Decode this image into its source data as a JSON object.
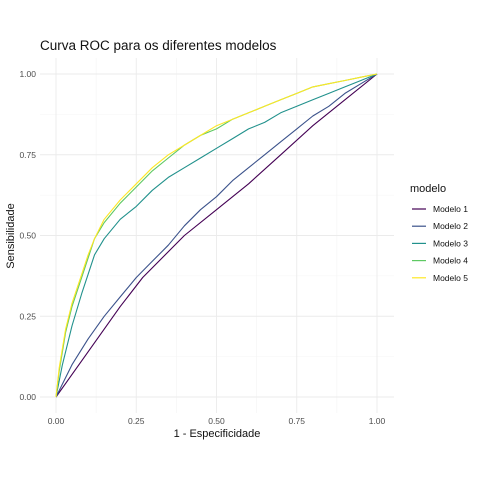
{
  "chart_data": {
    "type": "line",
    "title": "Curva ROC para os diferentes modelos",
    "xlabel": "1 - Especificidade",
    "ylabel": "Sensibilidade",
    "xlim": [
      0,
      1
    ],
    "ylim": [
      0,
      1
    ],
    "x_ticks": [
      "0.00",
      "0.25",
      "0.50",
      "0.75",
      "1.00"
    ],
    "y_ticks": [
      "0.00",
      "0.25",
      "0.50",
      "0.75",
      "1.00"
    ],
    "grid": true,
    "legend": {
      "title": "modelo",
      "position": "right"
    },
    "series": [
      {
        "name": "Modelo 1",
        "color": "#440154",
        "points": [
          [
            0,
            0
          ],
          [
            0.1,
            0.14
          ],
          [
            0.2,
            0.28
          ],
          [
            0.27,
            0.37
          ],
          [
            0.4,
            0.5
          ],
          [
            0.5,
            0.58
          ],
          [
            0.6,
            0.66
          ],
          [
            0.7,
            0.75
          ],
          [
            0.8,
            0.84
          ],
          [
            0.9,
            0.92
          ],
          [
            1,
            1
          ]
        ]
      },
      {
        "name": "Modelo 2",
        "color": "#3b528b",
        "points": [
          [
            0,
            0
          ],
          [
            0.05,
            0.1
          ],
          [
            0.1,
            0.18
          ],
          [
            0.15,
            0.25
          ],
          [
            0.2,
            0.31
          ],
          [
            0.25,
            0.37
          ],
          [
            0.3,
            0.42
          ],
          [
            0.35,
            0.47
          ],
          [
            0.4,
            0.53
          ],
          [
            0.45,
            0.58
          ],
          [
            0.5,
            0.62
          ],
          [
            0.55,
            0.67
          ],
          [
            0.6,
            0.71
          ],
          [
            0.65,
            0.75
          ],
          [
            0.7,
            0.79
          ],
          [
            0.75,
            0.83
          ],
          [
            0.8,
            0.87
          ],
          [
            0.85,
            0.9
          ],
          [
            0.9,
            0.94
          ],
          [
            0.95,
            0.97
          ],
          [
            1,
            1
          ]
        ]
      },
      {
        "name": "Modelo 3",
        "color": "#21918c",
        "points": [
          [
            0,
            0
          ],
          [
            0.02,
            0.1
          ],
          [
            0.05,
            0.22
          ],
          [
            0.08,
            0.32
          ],
          [
            0.1,
            0.38
          ],
          [
            0.12,
            0.44
          ],
          [
            0.15,
            0.49
          ],
          [
            0.2,
            0.55
          ],
          [
            0.25,
            0.59
          ],
          [
            0.3,
            0.64
          ],
          [
            0.35,
            0.68
          ],
          [
            0.4,
            0.71
          ],
          [
            0.45,
            0.74
          ],
          [
            0.5,
            0.77
          ],
          [
            0.55,
            0.8
          ],
          [
            0.6,
            0.83
          ],
          [
            0.65,
            0.85
          ],
          [
            0.7,
            0.88
          ],
          [
            0.75,
            0.9
          ],
          [
            0.8,
            0.92
          ],
          [
            0.85,
            0.94
          ],
          [
            0.9,
            0.96
          ],
          [
            0.95,
            0.98
          ],
          [
            1,
            1
          ]
        ]
      },
      {
        "name": "Modelo 4",
        "color": "#5ec962",
        "points": [
          [
            0,
            0
          ],
          [
            0.01,
            0.08
          ],
          [
            0.03,
            0.2
          ],
          [
            0.05,
            0.28
          ],
          [
            0.08,
            0.37
          ],
          [
            0.1,
            0.43
          ],
          [
            0.12,
            0.49
          ],
          [
            0.15,
            0.54
          ],
          [
            0.2,
            0.6
          ],
          [
            0.25,
            0.65
          ],
          [
            0.3,
            0.7
          ],
          [
            0.35,
            0.74
          ],
          [
            0.4,
            0.78
          ],
          [
            0.45,
            0.81
          ],
          [
            0.5,
            0.83
          ],
          [
            0.55,
            0.86
          ],
          [
            0.6,
            0.88
          ],
          [
            0.65,
            0.9
          ],
          [
            0.7,
            0.92
          ],
          [
            0.75,
            0.94
          ],
          [
            0.8,
            0.96
          ],
          [
            0.85,
            0.97
          ],
          [
            0.9,
            0.98
          ],
          [
            0.95,
            0.99
          ],
          [
            1,
            1
          ]
        ]
      },
      {
        "name": "Modelo 5",
        "color": "#fde725",
        "points": [
          [
            0,
            0
          ],
          [
            0.01,
            0.09
          ],
          [
            0.03,
            0.21
          ],
          [
            0.05,
            0.29
          ],
          [
            0.08,
            0.38
          ],
          [
            0.1,
            0.44
          ],
          [
            0.12,
            0.49
          ],
          [
            0.15,
            0.55
          ],
          [
            0.2,
            0.61
          ],
          [
            0.25,
            0.66
          ],
          [
            0.3,
            0.71
          ],
          [
            0.35,
            0.75
          ],
          [
            0.4,
            0.78
          ],
          [
            0.45,
            0.81
          ],
          [
            0.5,
            0.84
          ],
          [
            0.55,
            0.86
          ],
          [
            0.6,
            0.88
          ],
          [
            0.65,
            0.9
          ],
          [
            0.7,
            0.92
          ],
          [
            0.75,
            0.94
          ],
          [
            0.8,
            0.96
          ],
          [
            0.85,
            0.97
          ],
          [
            0.9,
            0.98
          ],
          [
            0.95,
            0.99
          ],
          [
            1,
            1
          ]
        ]
      }
    ]
  }
}
